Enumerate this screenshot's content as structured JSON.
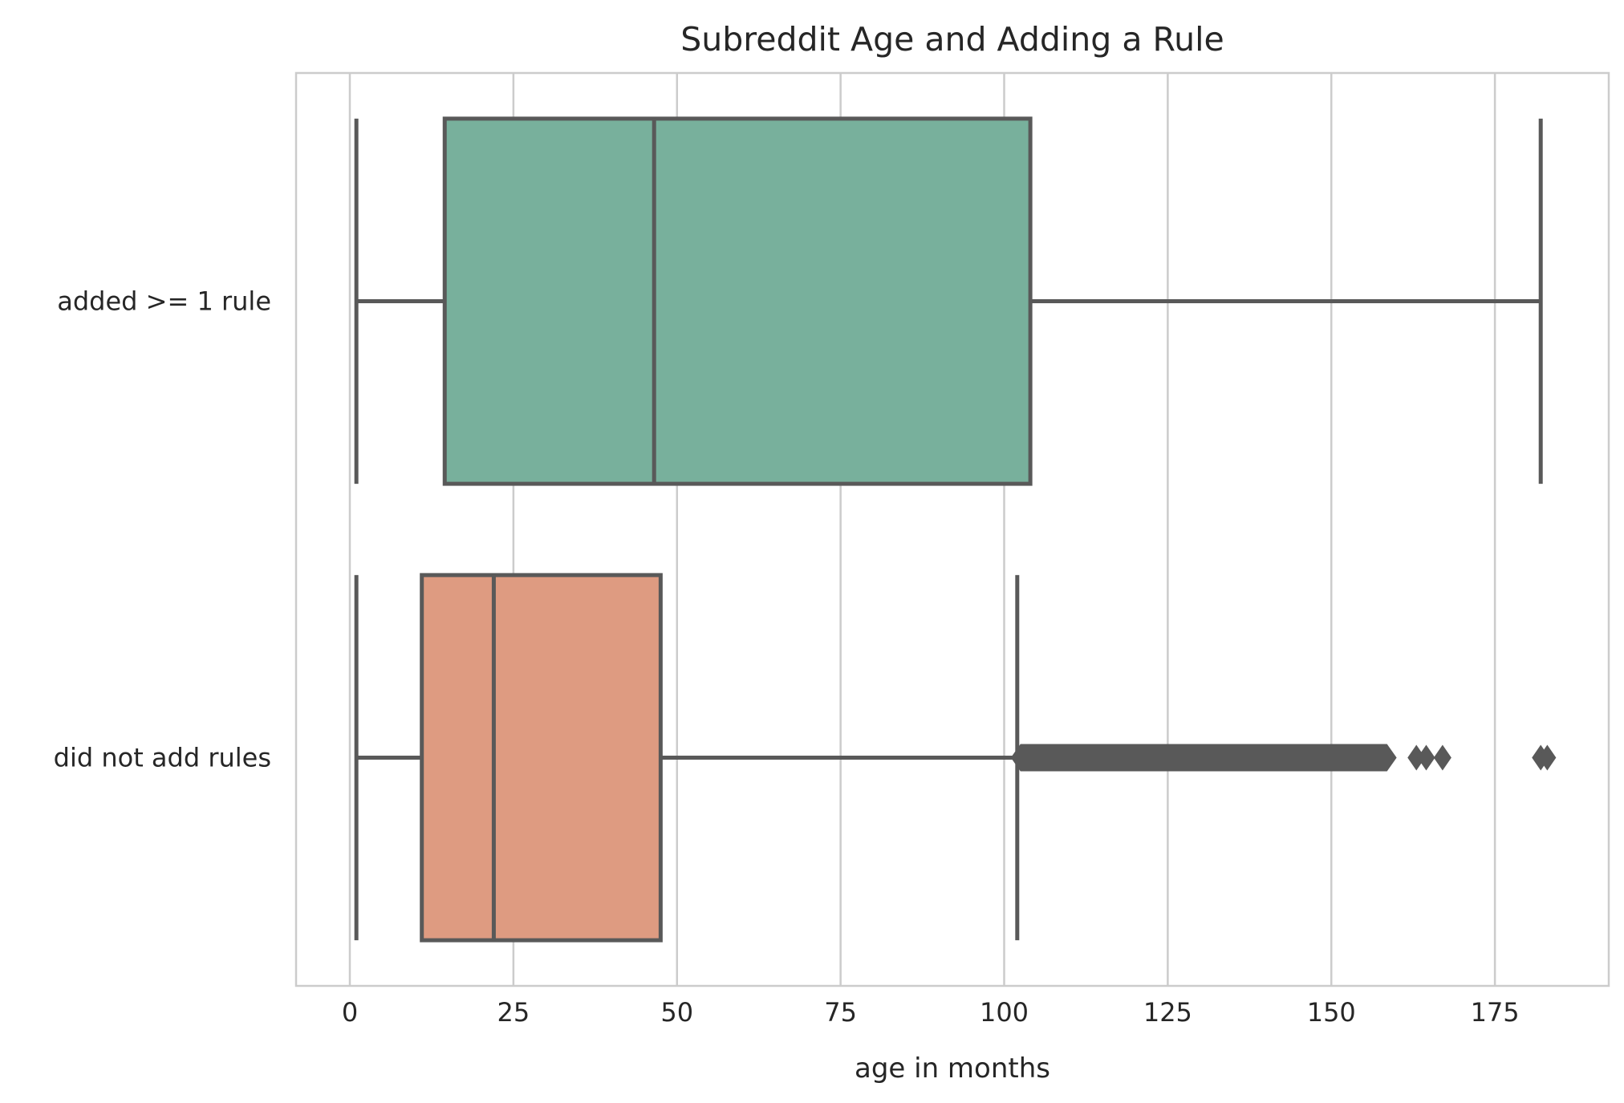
{
  "chart_data": {
    "type": "box",
    "title": "Subreddit Age and Adding a Rule",
    "xlabel": "age in months",
    "ylabel": "",
    "xlim": [
      -8,
      192
    ],
    "xticks": [
      0,
      25,
      50,
      75,
      100,
      125,
      150,
      175
    ],
    "grid": "vertical",
    "orientation": "horizontal",
    "categories": [
      "added >= 1 rule",
      "did not add rules"
    ],
    "boxes": [
      {
        "category": "added >= 1 rule",
        "whisker_low": 1,
        "q1": 14.5,
        "median": 46.5,
        "q3": 104,
        "whisker_high": 182,
        "color": "#78b09c",
        "outliers": []
      },
      {
        "category": "did not add rules",
        "whisker_low": 1,
        "q1": 11,
        "median": 22,
        "q3": 47.5,
        "whisker_high": 102,
        "color": "#de9b81",
        "outliers": [
          163,
          164.5,
          167,
          182,
          183
        ],
        "outlier_band": [
          102,
          159
        ]
      }
    ],
    "colors": {
      "line": "#595959",
      "grid": "#cccccc",
      "text": "#262626"
    }
  }
}
